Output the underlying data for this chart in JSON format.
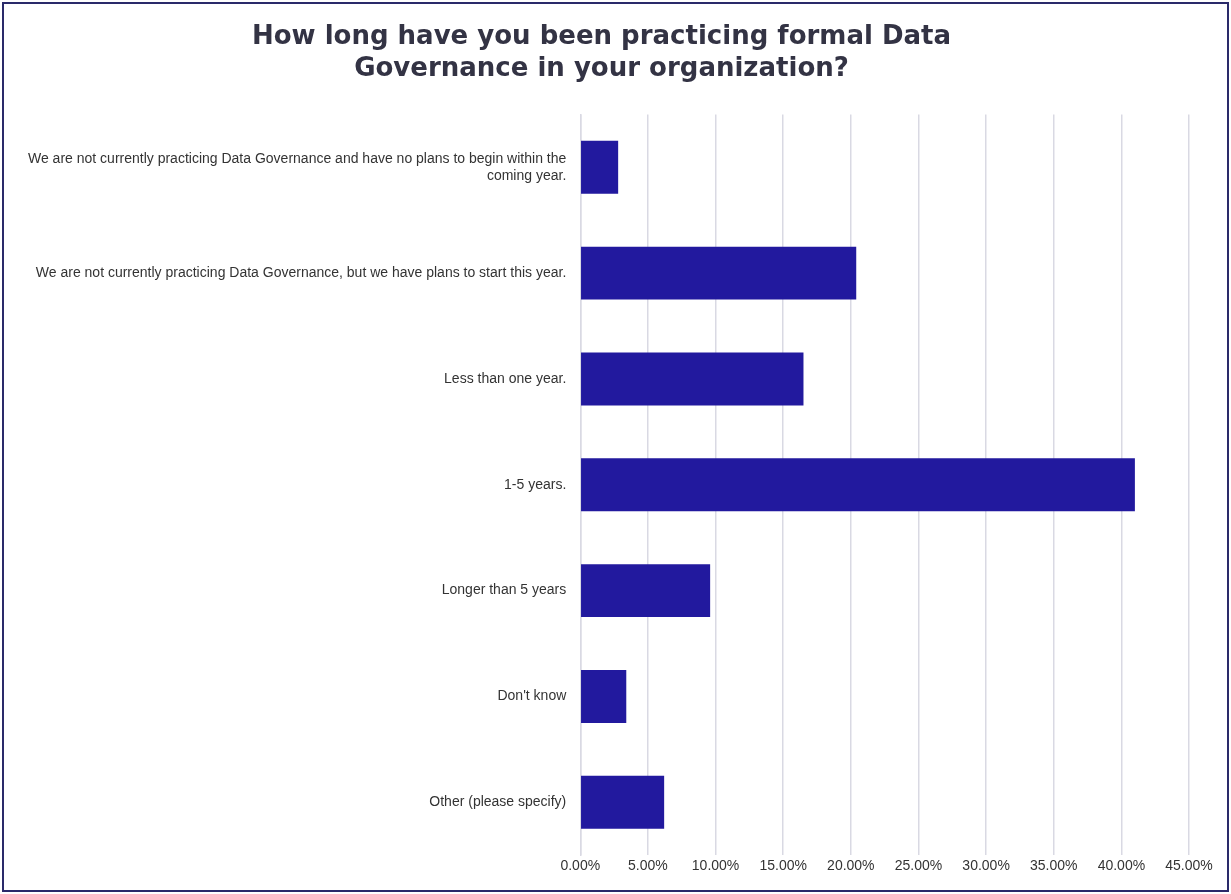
{
  "chart_data": {
    "type": "bar",
    "orientation": "horizontal",
    "title": "How long have you been practicing formal Data Governance in your organization?",
    "categories": [
      "We are not currently practicing Data Governance and have no plans to begin within the coming year.",
      "We are not currently practicing Data Governance, but we have plans to start this year.",
      "Less than one year.",
      "1-5 years.",
      "Longer than 5 years",
      "Don't know",
      "Other (please specify)"
    ],
    "values": [
      2.8,
      20.4,
      16.5,
      41.0,
      9.6,
      3.4,
      6.2
    ],
    "color": "#22199e",
    "xlim": [
      0,
      45
    ],
    "xticks": [
      {
        "value": 0,
        "label": "0.00%"
      },
      {
        "value": 5,
        "label": "5.00%"
      },
      {
        "value": 10,
        "label": "10.00%"
      },
      {
        "value": 15,
        "label": "15.00%"
      },
      {
        "value": 20,
        "label": "20.00%"
      },
      {
        "value": 25,
        "label": "25.00%"
      },
      {
        "value": 30,
        "label": "30.00%"
      },
      {
        "value": 35,
        "label": "35.00%"
      },
      {
        "value": 40,
        "label": "40.00%"
      },
      {
        "value": 45,
        "label": "45.00%"
      }
    ],
    "grid": "x",
    "legend": false
  }
}
